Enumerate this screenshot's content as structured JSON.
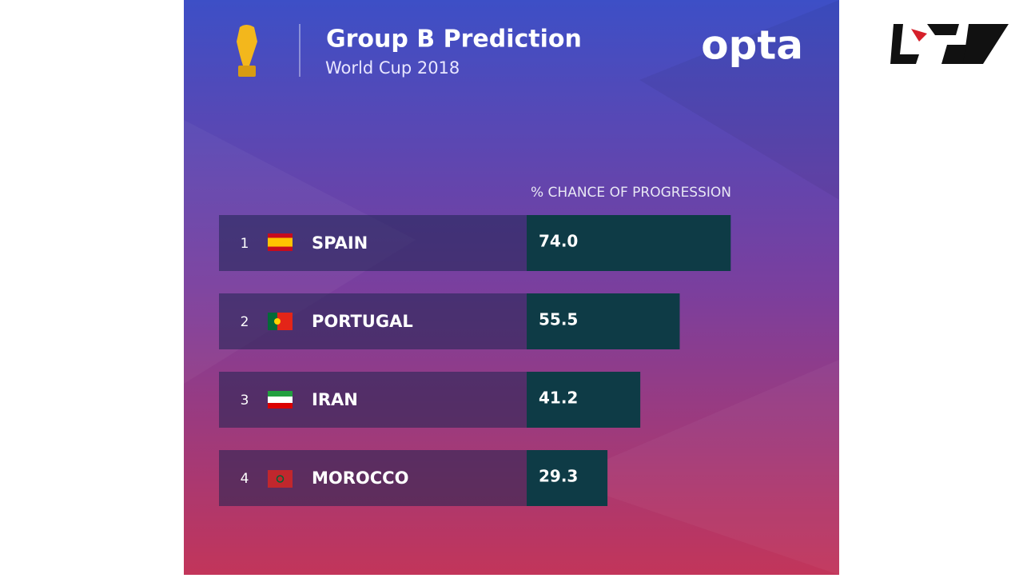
{
  "chart_data": {
    "type": "bar",
    "orientation": "horizontal",
    "title": "Group B Prediction",
    "subtitle": "World Cup 2018",
    "brand": "opta",
    "value_axis_label": "% CHANCE OF PROGRESSION",
    "ranks": [
      "1",
      "2",
      "3",
      "4"
    ],
    "categories": [
      "SPAIN",
      "PORTUGAL",
      "IRAN",
      "MOROCCO"
    ],
    "values": [
      74.0,
      55.5,
      41.2,
      29.3
    ],
    "value_labels": [
      "74.0",
      "55.5",
      "41.2",
      "29.3"
    ],
    "color": "#0e3b46"
  }
}
